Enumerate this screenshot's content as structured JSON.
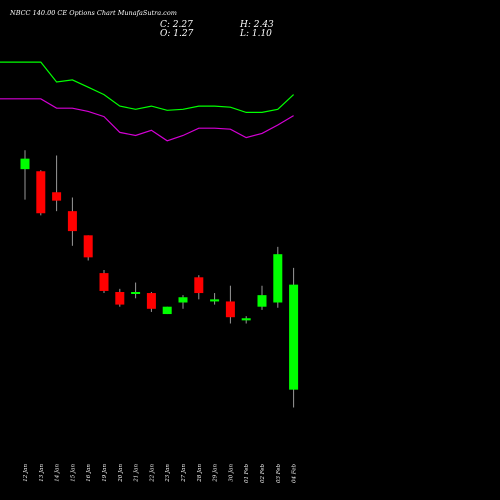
{
  "chart_data": {
    "type": "candlestick",
    "title": "NBCC 140.00 CE Options Chart MunafaSutra.com",
    "ohlc_summary": {
      "close_label": "C: 2.27",
      "high_label": "H: 2.43",
      "open_label": "O: 1.27",
      "low_label": "L: 1.10"
    },
    "categories": [
      "12 Jan",
      "13 Jan",
      "14 Jan",
      "15 Jan",
      "16 Jan",
      "19 Jan",
      "20 Jan",
      "21 Jan",
      "22 Jan",
      "23 Jan",
      "27 Jan",
      "28 Jan",
      "29 Jan",
      "30 Jan",
      "01 Feb",
      "02 Feb",
      "03 Feb",
      "04 Feb"
    ],
    "ylim": [
      0.6,
      4.6
    ],
    "candles": [
      {
        "date": "12 Jan",
        "open": 3.37,
        "high": 3.55,
        "low": 3.08,
        "close": 3.47
      },
      {
        "date": "13 Jan",
        "open": 3.35,
        "high": 3.36,
        "low": 2.93,
        "close": 2.95
      },
      {
        "date": "14 Jan",
        "open": 3.15,
        "high": 3.5,
        "low": 2.97,
        "close": 3.07
      },
      {
        "date": "15 Jan",
        "open": 2.97,
        "high": 3.1,
        "low": 2.64,
        "close": 2.78
      },
      {
        "date": "16 Jan",
        "open": 2.74,
        "high": 2.74,
        "low": 2.5,
        "close": 2.53
      },
      {
        "date": "19 Jan",
        "open": 2.38,
        "high": 2.41,
        "low": 2.19,
        "close": 2.21
      },
      {
        "date": "20 Jan",
        "open": 2.2,
        "high": 2.23,
        "low": 2.06,
        "close": 2.08
      },
      {
        "date": "21 Jan",
        "open": 2.19,
        "high": 2.29,
        "low": 2.14,
        "close": 2.2
      },
      {
        "date": "22 Jan",
        "open": 2.19,
        "high": 2.2,
        "low": 2.01,
        "close": 2.04
      },
      {
        "date": "23 Jan",
        "open": 1.99,
        "high": 2.06,
        "low": 1.99,
        "close": 2.06
      },
      {
        "date": "27 Jan",
        "open": 2.1,
        "high": 2.17,
        "low": 2.04,
        "close": 2.15
      },
      {
        "date": "28 Jan",
        "open": 2.34,
        "high": 2.36,
        "low": 2.13,
        "close": 2.19
      },
      {
        "date": "29 Jan",
        "open": 2.11,
        "high": 2.19,
        "low": 2.08,
        "close": 2.13
      },
      {
        "date": "30 Jan",
        "open": 2.11,
        "high": 2.26,
        "low": 1.9,
        "close": 1.96
      },
      {
        "date": "01 Feb",
        "open": 1.93,
        "high": 1.97,
        "low": 1.9,
        "close": 1.95
      },
      {
        "date": "02 Feb",
        "open": 2.06,
        "high": 2.26,
        "low": 2.03,
        "close": 2.17
      },
      {
        "date": "03 Feb",
        "open": 2.1,
        "high": 2.63,
        "low": 2.05,
        "close": 2.56
      },
      {
        "date": "04 Feb",
        "open": 1.27,
        "high": 2.43,
        "low": 1.1,
        "close": 2.27
      }
    ],
    "series": [
      {
        "color": "#00ff00",
        "values": [
          4.39,
          4.39,
          4.2,
          4.22,
          4.15,
          4.08,
          3.97,
          3.94,
          3.97,
          3.93,
          3.94,
          3.97,
          3.97,
          3.96,
          3.91,
          3.91,
          3.94,
          4.08
        ]
      },
      {
        "color": "#d400d4",
        "values": [
          4.04,
          4.04,
          3.95,
          3.95,
          3.92,
          3.87,
          3.72,
          3.69,
          3.74,
          3.64,
          3.69,
          3.76,
          3.76,
          3.75,
          3.67,
          3.71,
          3.79,
          3.88
        ]
      }
    ],
    "colors": {
      "up": "#00ff00",
      "down": "#ff0000",
      "wick": "#999999",
      "background": "#000000"
    }
  }
}
